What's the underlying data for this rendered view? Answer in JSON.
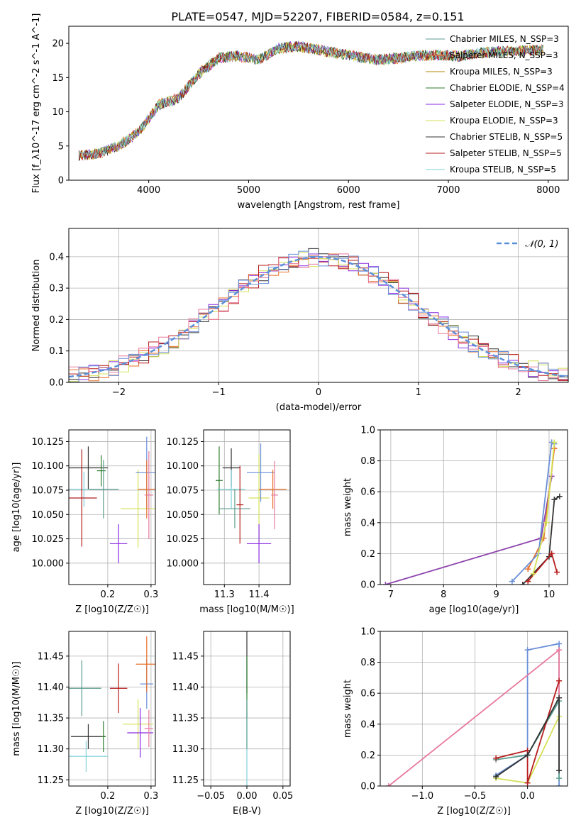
{
  "figure_title": "PLATE=0547, MJD=52207, FIBERID=0584, z=0.151",
  "series_colors": [
    "#5b9e8f",
    "#e8702a",
    "#b8860b",
    "#2f7d2f",
    "#8a2be2",
    "#d4e157",
    "#333333",
    "#b71c1c",
    "#7fd1d8"
  ],
  "chart_data": [
    {
      "type": "line",
      "xlabel": "wavelength [Angstrom, rest frame]",
      "ylabel": "Flux [f_λ10^-17 erg cm^-2 s^-1 A^-1]",
      "xlim": [
        3200,
        8200
      ],
      "ylim": [
        0,
        22.5
      ],
      "xticks": [
        4000,
        5000,
        6000,
        7000,
        8000
      ],
      "yticks": [
        0,
        5,
        10,
        15,
        20
      ],
      "grid": false,
      "legend_position": "top-right",
      "x": [
        3300,
        3500,
        3700,
        3900,
        4100,
        4300,
        4500,
        4700,
        4900,
        5100,
        5300,
        5500,
        5700,
        5900,
        6100,
        6300,
        6500,
        6700,
        6900,
        7100,
        7300,
        7500,
        7700,
        7900
      ],
      "series": [
        {
          "name": "Chabrier MILES, N_SSP=3",
          "values": [
            3.6,
            3.9,
            5.0,
            7.0,
            11.0,
            12.0,
            15.5,
            17.8,
            18.2,
            17.6,
            19.3,
            19.6,
            19.0,
            18.5,
            18.0,
            17.6,
            17.9,
            18.2,
            18.3,
            18.1,
            18.6,
            18.8,
            18.9,
            19.0
          ]
        },
        {
          "name": "Salpeter MILES, N_SSP=3",
          "values": [
            3.7,
            3.8,
            5.1,
            7.1,
            11.1,
            12.1,
            15.6,
            17.9,
            18.1,
            17.5,
            19.2,
            19.5,
            19.1,
            18.6,
            18.1,
            17.5,
            17.8,
            18.3,
            18.2,
            18.2,
            18.5,
            18.7,
            18.8,
            19.1
          ]
        },
        {
          "name": "Kroupa MILES, N_SSP=3",
          "values": [
            3.6,
            3.9,
            5.0,
            7.0,
            11.0,
            12.0,
            15.5,
            17.8,
            18.2,
            17.6,
            19.3,
            19.6,
            19.0,
            18.5,
            18.0,
            17.6,
            17.9,
            18.2,
            18.3,
            18.1,
            18.6,
            18.8,
            18.9,
            19.0
          ]
        },
        {
          "name": "Chabrier ELODIE, N_SSP=4",
          "values": [
            3.6,
            3.9,
            5.0,
            7.0,
            11.0,
            12.0,
            15.5,
            17.8,
            18.2,
            17.6,
            19.3,
            19.6,
            19.0,
            18.5,
            18.0,
            17.6,
            17.9,
            18.2,
            18.3,
            18.1,
            18.6,
            18.8,
            18.9,
            19.0
          ]
        },
        {
          "name": "Salpeter ELODIE, N_SSP=3",
          "values": [
            3.6,
            3.9,
            5.0,
            7.0,
            11.0,
            12.0,
            15.5,
            17.8,
            18.2,
            17.6,
            19.3,
            19.6,
            19.0,
            18.5,
            18.0,
            17.6,
            17.9,
            18.2,
            18.3,
            18.1,
            18.6,
            18.8,
            18.9,
            19.0
          ]
        },
        {
          "name": "Kroupa ELODIE, N_SSP=3",
          "values": [
            3.6,
            3.9,
            5.0,
            7.0,
            11.0,
            12.0,
            15.5,
            17.8,
            18.2,
            17.6,
            19.3,
            19.6,
            19.0,
            18.5,
            18.0,
            17.6,
            17.9,
            18.2,
            18.3,
            18.1,
            18.6,
            18.8,
            18.9,
            19.0
          ]
        },
        {
          "name": "Chabrier STELIB, N_SSP=5",
          "values": [
            3.6,
            3.9,
            5.0,
            7.0,
            11.0,
            12.0,
            15.5,
            17.8,
            18.2,
            17.6,
            19.3,
            19.6,
            19.0,
            18.5,
            18.0,
            17.6,
            17.9,
            18.2,
            18.3,
            18.1,
            18.6,
            18.8,
            18.9,
            19.0
          ]
        },
        {
          "name": "Salpeter STELIB, N_SSP=5",
          "values": [
            3.6,
            3.9,
            5.0,
            7.0,
            11.0,
            12.0,
            15.5,
            17.8,
            18.2,
            17.6,
            19.3,
            19.6,
            19.0,
            18.5,
            18.0,
            17.6,
            17.9,
            18.2,
            18.3,
            18.1,
            18.6,
            18.8,
            18.9,
            19.0
          ]
        },
        {
          "name": "Kroupa STELIB, N_SSP=5",
          "values": [
            3.6,
            3.9,
            5.0,
            7.0,
            11.0,
            12.0,
            15.5,
            17.8,
            18.2,
            17.6,
            19.3,
            19.6,
            19.0,
            18.5,
            18.0,
            17.6,
            17.9,
            18.2,
            18.3,
            18.1,
            18.6,
            18.8,
            18.9,
            19.0
          ]
        }
      ]
    },
    {
      "type": "bar",
      "subtype": "step-histogram",
      "xlabel": "(data-model)/error",
      "ylabel": "Normed distribution",
      "xlim": [
        -2.5,
        2.5
      ],
      "ylim": [
        0,
        0.49
      ],
      "xticks": [
        -2,
        -1,
        0,
        1,
        2
      ],
      "yticks": [
        0.0,
        0.1,
        0.2,
        0.3,
        0.4
      ],
      "grid": true,
      "legend_position": "top-right",
      "bin_centers": [
        -2.4,
        -2.2,
        -2.0,
        -1.8,
        -1.6,
        -1.4,
        -1.2,
        -1.0,
        -0.8,
        -0.6,
        -0.4,
        -0.2,
        0.0,
        0.2,
        0.4,
        0.6,
        0.8,
        1.0,
        1.2,
        1.4,
        1.6,
        1.8,
        2.0,
        2.2,
        2.4
      ],
      "series": [
        {
          "values": [
            0.03,
            0.04,
            0.08,
            0.11,
            0.14,
            0.18,
            0.22,
            0.27,
            0.32,
            0.36,
            0.38,
            0.45,
            0.38,
            0.36,
            0.34,
            0.33,
            0.29,
            0.24,
            0.19,
            0.14,
            0.11,
            0.08,
            0.06,
            0.04,
            0.03
          ]
        },
        {
          "values": [
            0.02,
            0.05,
            0.07,
            0.12,
            0.15,
            0.19,
            0.23,
            0.26,
            0.31,
            0.35,
            0.4,
            0.42,
            0.37,
            0.35,
            0.33,
            0.35,
            0.3,
            0.23,
            0.18,
            0.15,
            0.1,
            0.07,
            0.05,
            0.03,
            0.04
          ]
        },
        {
          "values": [
            0.04,
            0.06,
            0.09,
            0.1,
            0.13,
            0.17,
            0.21,
            0.28,
            0.3,
            0.37,
            0.37,
            0.4,
            0.41,
            0.38,
            0.32,
            0.31,
            0.28,
            0.25,
            0.2,
            0.13,
            0.12,
            0.09,
            0.06,
            0.05,
            0.02
          ]
        }
      ],
      "reference_curve": {
        "name": "N(0,1)",
        "function": "standard normal pdf"
      }
    },
    {
      "type": "scatter",
      "subtype": "errorbar",
      "xlabel": "Z [log10(Z/Z☉)]",
      "ylabel": "age  [log10(age/yr)]",
      "xlim": [
        0.11,
        0.31
      ],
      "ylim": [
        9.978,
        10.137
      ],
      "xticks": [
        0.2,
        0.3
      ],
      "yticks": [
        10.0,
        10.025,
        10.05,
        10.075,
        10.1,
        10.125
      ],
      "grid": true,
      "points": [
        {
          "x": 0.155,
          "y": 10.098,
          "xerr": 0.045,
          "yerr": 0.022
        },
        {
          "x": 0.185,
          "y": 10.095,
          "xerr": 0.01,
          "yerr": 0.016
        },
        {
          "x": 0.145,
          "y": 10.076,
          "xerr": 0.05,
          "yerr": 0.018
        },
        {
          "x": 0.19,
          "y": 10.076,
          "xerr": 0.035,
          "yerr": 0.03
        },
        {
          "x": 0.14,
          "y": 10.067,
          "xerr": 0.035,
          "yerr": 0.05
        },
        {
          "x": 0.27,
          "y": 10.056,
          "xerr": 0.04,
          "yerr": 0.04
        },
        {
          "x": 0.225,
          "y": 10.02,
          "xerr": 0.02,
          "yerr": 0.02
        },
        {
          "x": 0.29,
          "y": 10.093,
          "xerr": 0.025,
          "yerr": 0.037
        },
        {
          "x": 0.29,
          "y": 10.076,
          "xerr": 0.02,
          "yerr": 0.03
        },
        {
          "x": 0.295,
          "y": 10.07,
          "xerr": 0.01,
          "yerr": 0.045
        }
      ]
    },
    {
      "type": "scatter",
      "subtype": "errorbar",
      "xlabel": "mass [log10(M/M☉)]",
      "xlim": [
        11.24,
        11.49
      ],
      "ylim": [
        9.978,
        10.137
      ],
      "xticks": [
        11.3,
        11.4
      ],
      "yticks": [
        10.0,
        10.025,
        10.05,
        10.075,
        10.1,
        10.125
      ],
      "grid": true,
      "points": [
        {
          "x": 11.32,
          "y": 10.098,
          "xerr": 0.025,
          "yerr": 0.02
        },
        {
          "x": 11.285,
          "y": 10.085,
          "xerr": 0.01,
          "yerr": 0.035
        },
        {
          "x": 11.32,
          "y": 10.076,
          "xerr": 0.04,
          "yerr": 0.02
        },
        {
          "x": 11.33,
          "y": 10.056,
          "xerr": 0.045,
          "yerr": 0.02
        },
        {
          "x": 11.345,
          "y": 10.06,
          "xerr": 0.01,
          "yerr": 0.04
        },
        {
          "x": 11.4,
          "y": 10.067,
          "xerr": 0.03,
          "yerr": 0.045
        },
        {
          "x": 11.4,
          "y": 10.02,
          "xerr": 0.035,
          "yerr": 0.02
        },
        {
          "x": 11.405,
          "y": 10.093,
          "xerr": 0.04,
          "yerr": 0.03
        },
        {
          "x": 11.44,
          "y": 10.076,
          "xerr": 0.04,
          "yerr": 0.02
        },
        {
          "x": 11.445,
          "y": 10.07,
          "xerr": 0.01,
          "yerr": 0.035
        }
      ]
    },
    {
      "type": "line",
      "xlabel": "age  [log10(age/yr)]",
      "ylabel": "mass weight",
      "xlim": [
        6.8,
        10.35
      ],
      "ylim": [
        0.0,
        1.0
      ],
      "xticks": [
        7,
        8,
        9,
        10
      ],
      "yticks": [
        0.0,
        0.2,
        0.4,
        0.6,
        0.8,
        1.0
      ],
      "grid": true,
      "series": [
        {
          "x": [
            6.9,
            9.85,
            10.05
          ],
          "y": [
            0.0,
            0.3,
            0.7
          ]
        },
        {
          "x": [
            9.6,
            9.9,
            10.1,
            10.1
          ],
          "y": [
            0.1,
            0.3,
            0.88,
            0.88
          ]
        },
        {
          "x": [
            9.3,
            9.8,
            10.05,
            10.1
          ],
          "y": [
            0.02,
            0.2,
            0.92,
            0.91
          ]
        },
        {
          "x": [
            9.5,
            10.0,
            10.1,
            10.2
          ],
          "y": [
            0.0,
            0.18,
            0.55,
            0.57
          ]
        },
        {
          "x": [
            9.6,
            10.05,
            10.15
          ],
          "y": [
            0.02,
            0.2,
            0.08
          ]
        },
        {
          "x": [
            9.7,
            9.95,
            10.1
          ],
          "y": [
            0.07,
            0.4,
            0.92
          ]
        }
      ]
    },
    {
      "type": "scatter",
      "subtype": "errorbar",
      "xlabel": "Z [log10(Z/Z☉)]",
      "ylabel": "mass [log10(M/M☉)]",
      "xlim": [
        0.11,
        0.31
      ],
      "ylim": [
        11.24,
        11.49
      ],
      "xticks": [
        0.2,
        0.3
      ],
      "yticks": [
        11.25,
        11.3,
        11.35,
        11.4,
        11.45
      ],
      "grid": true,
      "points": [
        {
          "x": 0.155,
          "y": 11.32,
          "xerr": 0.04,
          "yerr": 0.02
        },
        {
          "x": 0.19,
          "y": 11.32,
          "xerr": 0.005,
          "yerr": 0.025
        },
        {
          "x": 0.15,
          "y": 11.288,
          "xerr": 0.05,
          "yerr": 0.025
        },
        {
          "x": 0.14,
          "y": 11.398,
          "xerr": 0.045,
          "yerr": 0.045
        },
        {
          "x": 0.225,
          "y": 11.398,
          "xerr": 0.02,
          "yerr": 0.04
        },
        {
          "x": 0.27,
          "y": 11.34,
          "xerr": 0.035,
          "yerr": 0.04
        },
        {
          "x": 0.275,
          "y": 11.326,
          "xerr": 0.03,
          "yerr": 0.04
        },
        {
          "x": 0.29,
          "y": 11.405,
          "xerr": 0.015,
          "yerr": 0.04
        },
        {
          "x": 0.29,
          "y": 11.437,
          "xerr": 0.025,
          "yerr": 0.045
        },
        {
          "x": 0.295,
          "y": 11.333,
          "xerr": 0.01,
          "yerr": 0.03
        }
      ]
    },
    {
      "type": "scatter",
      "subtype": "errorbar",
      "xlabel": "E(B-V)",
      "xlim": [
        -0.06,
        0.06
      ],
      "ylim": [
        11.24,
        11.49
      ],
      "xticks": [
        -0.05,
        0.0,
        0.05
      ],
      "yticks": [
        11.25,
        11.3,
        11.35,
        11.4,
        11.45
      ],
      "grid": true,
      "points": [
        {
          "x": 0.0,
          "y": 11.44,
          "xerr": 0.0,
          "yerr": 0.05
        },
        {
          "x": 0.0,
          "y": 11.4,
          "xerr": 0.0,
          "yerr": 0.05
        },
        {
          "x": 0.0,
          "y": 11.3,
          "xerr": 0.0,
          "yerr": 0.06
        },
        {
          "x": 0.0,
          "y": 11.34,
          "xerr": 0.0,
          "yerr": 0.04
        }
      ]
    },
    {
      "type": "line",
      "xlabel": "Z [log10(Z/Z☉)]",
      "ylabel": "mass weight",
      "xlim": [
        -1.4,
        0.38
      ],
      "ylim": [
        0.0,
        1.0
      ],
      "xticks": [
        -1.0,
        -0.5,
        0.0
      ],
      "yticks": [
        0.0,
        0.2,
        0.4,
        0.6,
        0.8,
        1.0
      ],
      "grid": true,
      "series": [
        {
          "x": [
            -0.3,
            0.0,
            0.0,
            0.3,
            0.3
          ],
          "y": [
            0.07,
            0.2,
            0.88,
            0.92,
            0.0
          ]
        },
        {
          "x": [
            -1.32,
            0.3,
            0.3
          ],
          "y": [
            0.0,
            0.88,
            0.1
          ]
        },
        {
          "x": [
            -0.3,
            0.0,
            0.3,
            0.3
          ],
          "y": [
            0.17,
            0.2,
            0.55,
            0.05
          ]
        },
        {
          "x": [
            -0.3,
            0.0,
            0.3
          ],
          "y": [
            0.05,
            0.02,
            0.45
          ]
        },
        {
          "x": [
            -0.3,
            0.0,
            0.0,
            0.3
          ],
          "y": [
            0.18,
            0.23,
            0.02,
            0.68
          ]
        },
        {
          "x": [
            -0.3,
            0.0,
            0.3,
            0.3
          ],
          "y": [
            0.06,
            0.2,
            0.57,
            0.1
          ]
        }
      ]
    }
  ]
}
